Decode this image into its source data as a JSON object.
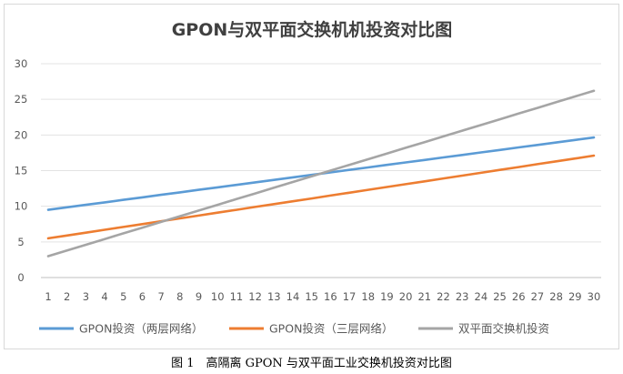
{
  "chart_data": {
    "type": "line",
    "title": "GPON与双平面交换机机投资对比图",
    "xlabel": "",
    "ylabel": "",
    "x": [
      1,
      2,
      3,
      4,
      5,
      6,
      7,
      8,
      9,
      10,
      11,
      12,
      13,
      14,
      15,
      16,
      17,
      18,
      19,
      20,
      21,
      22,
      23,
      24,
      25,
      26,
      27,
      28,
      29,
      30
    ],
    "ylim": [
      0,
      30
    ],
    "yticks": [
      0,
      5,
      10,
      15,
      20,
      25,
      30
    ],
    "grid": "horizontal",
    "legend_position": "bottom",
    "series": [
      {
        "name": "GPON投资（两层网络）",
        "color": "#5b9bd5",
        "values": [
          9.5,
          9.85,
          10.2,
          10.55,
          10.9,
          11.25,
          11.6,
          11.95,
          12.3,
          12.65,
          13.0,
          13.35,
          13.7,
          14.05,
          14.4,
          14.75,
          15.1,
          15.45,
          15.8,
          16.15,
          16.5,
          16.85,
          17.2,
          17.55,
          17.9,
          18.25,
          18.6,
          18.95,
          19.3,
          19.65
        ]
      },
      {
        "name": "GPON投资（三层网络）",
        "color": "#ed7d31",
        "values": [
          5.5,
          5.9,
          6.3,
          6.7,
          7.1,
          7.5,
          7.9,
          8.3,
          8.7,
          9.1,
          9.5,
          9.9,
          10.3,
          10.7,
          11.1,
          11.5,
          11.9,
          12.3,
          12.7,
          13.1,
          13.5,
          13.9,
          14.3,
          14.7,
          15.1,
          15.5,
          15.9,
          16.3,
          16.7,
          17.1
        ]
      },
      {
        "name": "双平面交换机投资",
        "color": "#a5a5a5",
        "values": [
          3.0,
          3.8,
          4.6,
          5.4,
          6.2,
          7.0,
          7.8,
          8.6,
          9.4,
          10.2,
          11.0,
          11.8,
          12.6,
          13.4,
          14.2,
          15.0,
          15.8,
          16.6,
          17.4,
          18.2,
          19.0,
          19.8,
          20.6,
          21.4,
          22.2,
          23.0,
          23.8,
          24.6,
          25.4,
          26.2
        ]
      }
    ]
  },
  "caption": "图 1　高隔离 GPON 与双平面工业交换机投资对比图"
}
